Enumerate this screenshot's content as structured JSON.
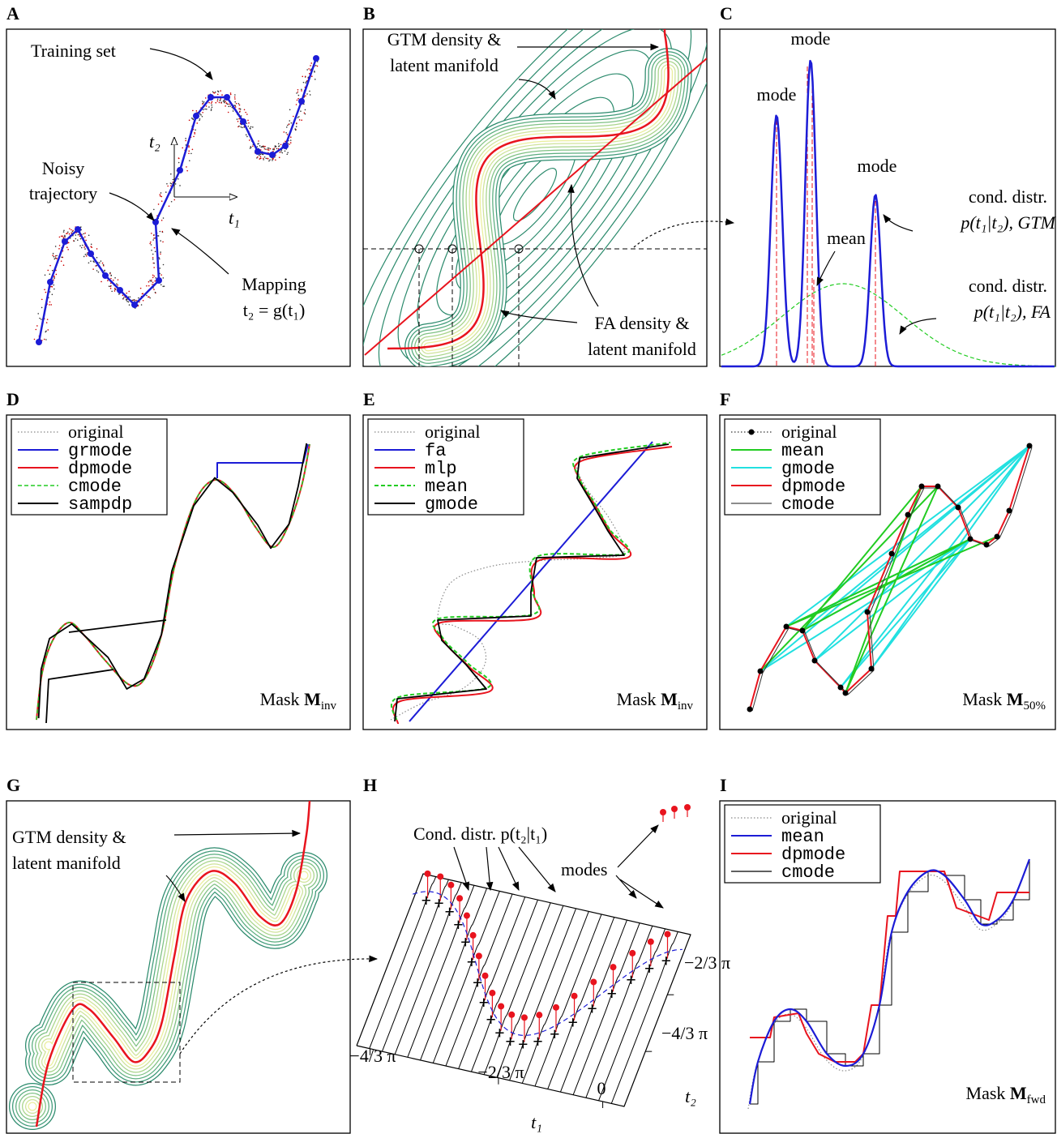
{
  "panels": {
    "a": {
      "label": "A",
      "training_set": "Training set",
      "noisy": [
        "Noisy",
        "trajectory"
      ],
      "mapping": [
        "Mapping",
        "t₂ = g(t₁)"
      ],
      "t1": "t₁",
      "t2": "t₂"
    },
    "b": {
      "label": "B",
      "gtm": [
        "GTM density &",
        "latent manifold"
      ],
      "fa": [
        "FA density &",
        "latent manifold"
      ]
    },
    "c": {
      "label": "C",
      "modes": [
        "mode",
        "mode",
        "mode"
      ],
      "mean": "mean",
      "gtm": [
        "cond. distr.",
        "p(t₁|t₂), GTM"
      ],
      "fa": [
        "cond. distr.",
        "p(t₁|t₂), FA"
      ]
    },
    "d": {
      "label": "D",
      "legend": [
        "original",
        "grmode",
        "dpmode",
        "cmode",
        "sampdp"
      ],
      "mask": {
        "word": "Mask",
        "m": "M",
        "sub": "inv"
      }
    },
    "e": {
      "label": "E",
      "legend": [
        "original",
        "fa",
        "mlp",
        "mean",
        "gmode"
      ],
      "mask": {
        "word": "Mask",
        "m": "M",
        "sub": "inv"
      }
    },
    "f": {
      "label": "F",
      "legend": [
        "original",
        "mean",
        "gmode",
        "dpmode",
        "cmode"
      ],
      "mask": {
        "word": "Mask",
        "m": "M",
        "sub": "50%"
      }
    },
    "g": {
      "label": "G",
      "gtm": [
        "GTM density &",
        "latent manifold"
      ]
    },
    "h": {
      "label": "H",
      "cond": "Cond. distr. p(t₂|t₁)",
      "modes": "modes",
      "t1": "t₁",
      "t2": "t₂",
      "t1_ticks": [
        "−4/3 π",
        "−2/3 π",
        "0"
      ],
      "t2_ticks": [
        "−2/3 π",
        "−4/3 π"
      ]
    },
    "i": {
      "label": "I",
      "legend": [
        "original",
        "mean",
        "dpmode",
        "cmode"
      ],
      "mask": {
        "word": "Mask",
        "m": "M",
        "sub": "fwd"
      }
    }
  }
}
